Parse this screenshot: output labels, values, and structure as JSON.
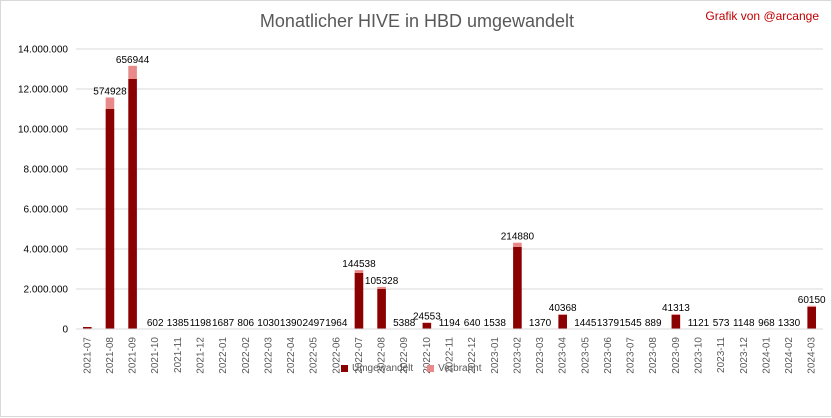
{
  "chart_data": {
    "type": "bar",
    "stacked": true,
    "title": "Monatlicher HIVE in HBD umgewandelt",
    "credit": "Grafik von @arcange",
    "ylim": [
      0,
      14000000
    ],
    "yticks": [
      "0",
      "2.000.000",
      "4.000.000",
      "6.000.000",
      "8.000.000",
      "10.000.000",
      "12.000.000",
      "14.000.000"
    ],
    "grid": true,
    "legend_position": "bottom",
    "categories": [
      "2021-07",
      "2021-08",
      "2021-09",
      "2021-10",
      "2021-11",
      "2021-12",
      "2022-01",
      "2022-02",
      "2022-03",
      "2022-04",
      "2022-05",
      "2022-06",
      "2022-07",
      "2022-08",
      "2022-09",
      "2022-10",
      "2022-11",
      "2022-12",
      "2023-01",
      "2023-02",
      "2023-03",
      "2023-04",
      "2023-05",
      "2023-06",
      "2023-07",
      "2023-08",
      "2023-09",
      "2023-10",
      "2023-11",
      "2023-12",
      "2024-01",
      "2024-02",
      "2024-03"
    ],
    "series": [
      {
        "name": "Umgewandelt",
        "color": "#8b0000",
        "values": [
          100000,
          11000000,
          12500000,
          0,
          0,
          0,
          0,
          0,
          0,
          0,
          0,
          0,
          2800000,
          2000000,
          0,
          300000,
          0,
          0,
          0,
          4100000,
          0,
          700000,
          0,
          0,
          0,
          0,
          700000,
          0,
          0,
          0,
          0,
          0,
          1100000
        ]
      },
      {
        "name": "Verbrannt",
        "color": "#e88a8a",
        "values": [
          0,
          574928,
          656944,
          602,
          1385,
          1198,
          1687,
          806,
          1030,
          1390,
          2497,
          1964,
          144538,
          105328,
          5388,
          24553,
          1194,
          640,
          1538,
          214880,
          1370,
          40368,
          1445,
          1379,
          1545,
          889,
          41313,
          1121,
          573,
          1148,
          968,
          1330,
          60150
        ]
      }
    ],
    "data_labels": [
      "",
      "574928",
      "656944",
      "602",
      "1385",
      "1198",
      "1687",
      "806",
      "1030",
      "1390",
      "2497",
      "1964",
      "144538",
      "105328",
      "5388",
      "24553",
      "1194",
      "640",
      "1538",
      "214880",
      "1370",
      "40368",
      "1445",
      "1379",
      "1545",
      "889",
      "41313",
      "1121",
      "573",
      "1148",
      "968",
      "1330",
      "60150"
    ]
  },
  "legend": {
    "umgewandelt": "Umgewandelt",
    "verbrannt": "Verbrannt"
  }
}
